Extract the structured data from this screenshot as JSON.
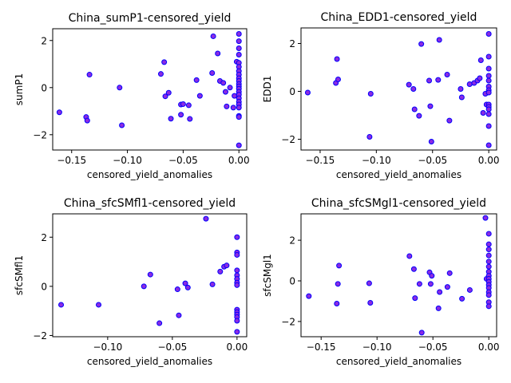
{
  "chart_data": [
    {
      "type": "scatter",
      "title": "China_sumP1-censored_yield",
      "xlabel": "censored_yield_anomalies",
      "ylabel": "sumP1",
      "xlim": [
        -0.167,
        0.007
      ],
      "ylim": [
        -2.65,
        2.5
      ],
      "xticks": [
        -0.15,
        -0.1,
        -0.05,
        0.0
      ],
      "xtick_labels": [
        "−0.15",
        "−0.10",
        "−0.05",
        "0.00"
      ],
      "yticks": [
        -2,
        0,
        2
      ],
      "ytick_labels": [
        "−2",
        "0",
        "2"
      ],
      "marker_face": "#8a2be2",
      "marker_edge": "#0000ff",
      "points": [
        [
          -0.161,
          -1.05
        ],
        [
          -0.137,
          -1.25
        ],
        [
          -0.136,
          -1.4
        ],
        [
          -0.134,
          0.55
        ],
        [
          -0.107,
          0.0
        ],
        [
          -0.105,
          -1.6
        ],
        [
          -0.07,
          0.58
        ],
        [
          -0.067,
          1.08
        ],
        [
          -0.066,
          -0.37
        ],
        [
          -0.063,
          -0.22
        ],
        [
          -0.061,
          -1.32
        ],
        [
          -0.052,
          -0.72
        ],
        [
          -0.052,
          -1.15
        ],
        [
          -0.05,
          -0.7
        ],
        [
          -0.045,
          -0.75
        ],
        [
          -0.044,
          -1.33
        ],
        [
          -0.038,
          0.32
        ],
        [
          -0.035,
          -0.35
        ],
        [
          -0.024,
          0.62
        ],
        [
          -0.023,
          2.18
        ],
        [
          -0.019,
          1.45
        ],
        [
          -0.017,
          0.28
        ],
        [
          -0.014,
          0.2
        ],
        [
          -0.012,
          -0.18
        ],
        [
          -0.011,
          -0.8
        ],
        [
          -0.008,
          0.0
        ],
        [
          -0.005,
          -0.85
        ],
        [
          -0.004,
          -0.35
        ],
        [
          -0.002,
          1.1
        ],
        [
          0.0,
          2.28
        ],
        [
          0.0,
          1.97
        ],
        [
          0.0,
          1.67
        ],
        [
          0.0,
          1.4
        ],
        [
          0.0,
          1.05
        ],
        [
          0.0,
          0.88
        ],
        [
          0.0,
          0.7
        ],
        [
          0.0,
          0.55
        ],
        [
          0.0,
          0.4
        ],
        [
          0.0,
          0.28
        ],
        [
          0.0,
          0.15
        ],
        [
          0.0,
          0.05
        ],
        [
          0.0,
          -0.05
        ],
        [
          0.0,
          -0.18
        ],
        [
          0.0,
          -0.3
        ],
        [
          0.0,
          -0.45
        ],
        [
          0.0,
          -0.6
        ],
        [
          0.0,
          -0.72
        ],
        [
          0.0,
          -0.85
        ],
        [
          0.0,
          -1.2
        ],
        [
          0.0,
          -1.25
        ],
        [
          0.0,
          -2.45
        ]
      ]
    },
    {
      "type": "scatter",
      "title": "China_EDD1-censored_yield",
      "xlabel": "censored_yield_anomalies",
      "ylabel": "EDD1",
      "xlim": [
        -0.167,
        0.007
      ],
      "ylim": [
        -2.45,
        2.65
      ],
      "xticks": [
        -0.15,
        -0.1,
        -0.05,
        0.0
      ],
      "xtick_labels": [
        "−0.15",
        "−0.10",
        "−0.05",
        "0.00"
      ],
      "yticks": [
        -2,
        0,
        2
      ],
      "ytick_labels": [
        "−2",
        "0",
        "2"
      ],
      "marker_face": "#8a2be2",
      "marker_edge": "#0000ff",
      "points": [
        [
          -0.161,
          -0.05
        ],
        [
          -0.136,
          0.35
        ],
        [
          -0.135,
          1.35
        ],
        [
          -0.134,
          0.5
        ],
        [
          -0.106,
          -1.9
        ],
        [
          -0.105,
          -0.1
        ],
        [
          -0.071,
          0.28
        ],
        [
          -0.067,
          0.1
        ],
        [
          -0.066,
          -0.75
        ],
        [
          -0.062,
          -1.02
        ],
        [
          -0.06,
          1.98
        ],
        [
          -0.053,
          0.45
        ],
        [
          -0.052,
          -0.62
        ],
        [
          -0.051,
          -2.1
        ],
        [
          -0.045,
          0.48
        ],
        [
          -0.044,
          2.15
        ],
        [
          -0.037,
          0.7
        ],
        [
          -0.035,
          -1.22
        ],
        [
          -0.025,
          0.1
        ],
        [
          -0.024,
          -0.25
        ],
        [
          -0.017,
          0.3
        ],
        [
          -0.013,
          0.35
        ],
        [
          -0.01,
          0.45
        ],
        [
          -0.008,
          0.55
        ],
        [
          -0.007,
          1.3
        ],
        [
          -0.005,
          -0.9
        ],
        [
          -0.003,
          -0.1
        ],
        [
          -0.002,
          -0.55
        ],
        [
          0.0,
          2.4
        ],
        [
          0.0,
          1.45
        ],
        [
          0.0,
          0.95
        ],
        [
          0.0,
          0.65
        ],
        [
          0.0,
          0.45
        ],
        [
          0.0,
          0.2
        ],
        [
          0.0,
          0.05
        ],
        [
          0.0,
          -0.05
        ],
        [
          0.0,
          -0.55
        ],
        [
          0.0,
          -0.65
        ],
        [
          0.0,
          -0.75
        ],
        [
          0.0,
          -0.95
        ],
        [
          0.0,
          -1.45
        ],
        [
          0.0,
          -2.25
        ]
      ]
    },
    {
      "type": "scatter",
      "title": "China_sfcSMfl1-censored_yield",
      "xlabel": "censored_yield_anomalies",
      "ylabel": "sfcSMfl1",
      "xlim": [
        -0.1425,
        0.0075
      ],
      "ylim": [
        -2.05,
        2.95
      ],
      "xticks": [
        -0.1,
        -0.05,
        0.0
      ],
      "xtick_labels": [
        "−0.10",
        "−0.05",
        "0.00"
      ],
      "yticks": [
        -2,
        0,
        2
      ],
      "ytick_labels": [
        "−2",
        "0",
        "2"
      ],
      "marker_face": "#8a2be2",
      "marker_edge": "#0000ff",
      "points": [
        [
          -0.136,
          -0.75
        ],
        [
          -0.107,
          -0.75
        ],
        [
          -0.072,
          0.0
        ],
        [
          -0.067,
          0.48
        ],
        [
          -0.06,
          -1.5
        ],
        [
          -0.046,
          -0.12
        ],
        [
          -0.045,
          -1.18
        ],
        [
          -0.04,
          0.12
        ],
        [
          -0.038,
          -0.05
        ],
        [
          -0.024,
          2.75
        ],
        [
          -0.019,
          0.08
        ],
        [
          -0.013,
          0.6
        ],
        [
          -0.01,
          0.8
        ],
        [
          -0.008,
          0.85
        ],
        [
          0.0,
          2.0
        ],
        [
          0.0,
          1.38
        ],
        [
          0.0,
          1.28
        ],
        [
          0.0,
          0.65
        ],
        [
          0.0,
          0.45
        ],
        [
          0.0,
          0.3
        ],
        [
          0.0,
          0.15
        ],
        [
          0.0,
          0.05
        ],
        [
          0.0,
          -0.95
        ],
        [
          0.0,
          -1.05
        ],
        [
          0.0,
          -1.15
        ],
        [
          0.0,
          -1.25
        ],
        [
          0.0,
          -1.4
        ],
        [
          0.0,
          -1.85
        ]
      ]
    },
    {
      "type": "scatter",
      "title": "China_sfcSMgl1-censored_yield",
      "xlabel": "censored_yield_anomalies",
      "ylabel": "sfcSMgl1",
      "xlim": [
        -0.168,
        0.007
      ],
      "ylim": [
        -2.75,
        3.3
      ],
      "xticks": [
        -0.15,
        -0.1,
        -0.05,
        0.0
      ],
      "xtick_labels": [
        "−0.15",
        "−0.10",
        "−0.05",
        "0.00"
      ],
      "yticks": [
        -2,
        0,
        2
      ],
      "ytick_labels": [
        "−2",
        "0",
        "2"
      ],
      "marker_face": "#8a2be2",
      "marker_edge": "#0000ff",
      "points": [
        [
          -0.161,
          -0.75
        ],
        [
          -0.136,
          -1.12
        ],
        [
          -0.135,
          -0.15
        ],
        [
          -0.134,
          0.75
        ],
        [
          -0.107,
          -0.12
        ],
        [
          -0.106,
          -1.08
        ],
        [
          -0.071,
          1.22
        ],
        [
          -0.067,
          0.58
        ],
        [
          -0.066,
          -0.85
        ],
        [
          -0.062,
          -0.15
        ],
        [
          -0.06,
          -2.55
        ],
        [
          -0.053,
          0.42
        ],
        [
          -0.052,
          -0.15
        ],
        [
          -0.051,
          0.25
        ],
        [
          -0.045,
          -1.35
        ],
        [
          -0.044,
          -0.55
        ],
        [
          -0.037,
          -0.3
        ],
        [
          -0.035,
          0.38
        ],
        [
          -0.024,
          -0.88
        ],
        [
          -0.017,
          -0.45
        ],
        [
          -0.003,
          3.1
        ],
        [
          -0.002,
          0.1
        ],
        [
          0.0,
          2.32
        ],
        [
          0.0,
          1.8
        ],
        [
          0.0,
          1.55
        ],
        [
          0.0,
          1.25
        ],
        [
          0.0,
          0.95
        ],
        [
          0.0,
          0.7
        ],
        [
          0.0,
          0.45
        ],
        [
          0.0,
          0.25
        ],
        [
          0.0,
          0.1
        ],
        [
          0.0,
          -0.05
        ],
        [
          0.0,
          -0.2
        ],
        [
          0.0,
          -0.35
        ],
        [
          0.0,
          -0.55
        ],
        [
          0.0,
          -0.7
        ],
        [
          0.0,
          -1.05
        ],
        [
          0.0,
          -1.25
        ]
      ]
    }
  ]
}
